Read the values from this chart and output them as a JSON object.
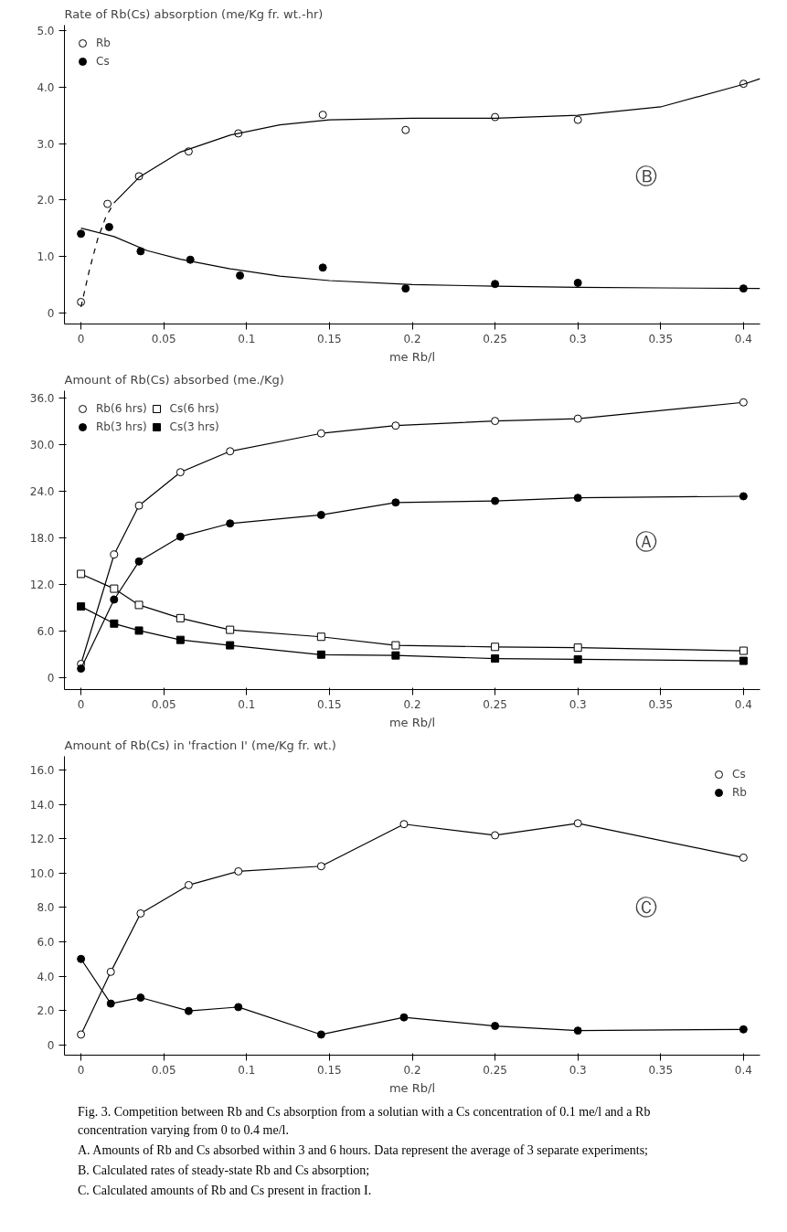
{
  "chart_data": [
    {
      "type": "scatter",
      "ylabel": "Rate of Rb(Cs) absorption (me/Kg fr. wt.-hr)",
      "xlabel": "me Rb/l",
      "annotations": [
        "Ⓑ"
      ],
      "xlim": [
        -0.01,
        0.41
      ],
      "xticks": [
        0,
        0.05,
        0.1,
        0.15,
        0.2,
        0.25,
        0.3,
        0.35,
        0.4
      ],
      "ylim": [
        -0.2,
        5.1
      ],
      "yticks": [
        0,
        {
          "value": 1,
          "label": "1.0"
        },
        {
          "value": 2,
          "label": "2.0"
        },
        {
          "value": 3,
          "label": "3.0"
        },
        {
          "value": 4,
          "label": "4.0"
        },
        {
          "value": 5,
          "label": "5.0"
        }
      ],
      "legend": "top left",
      "series": [
        {
          "name": "Rb",
          "color": "#ffffff",
          "marker": "circle",
          "x": [
            0,
            0.016,
            0.035,
            0.065,
            0.095,
            0.146,
            0.196,
            0.25,
            0.3,
            0.4
          ],
          "values": [
            0.19,
            1.93,
            2.42,
            2.86,
            3.18,
            3.51,
            3.24,
            3.47,
            3.42,
            4.06
          ]
        },
        {
          "name": "Cs",
          "color": "#000000",
          "marker": "circle",
          "x": [
            0,
            0.017,
            0.036,
            0.066,
            0.096,
            0.146,
            0.196,
            0.25,
            0.3,
            0.4
          ],
          "values": [
            1.4,
            1.52,
            1.09,
            0.94,
            0.66,
            0.8,
            0.43,
            0.51,
            0.53,
            0.43
          ]
        },
        {
          "type": "line",
          "color": "#000000",
          "marker": "none",
          "line_style": "dashed",
          "x": [
            0,
            0.005,
            0.01,
            0.015,
            0.02
          ],
          "values": [
            0.1,
            0.75,
            1.3,
            1.7,
            1.95
          ]
        },
        {
          "type": "line",
          "color": "#000000",
          "marker": "none",
          "line_style": "solid",
          "x": [
            0.02,
            0.035,
            0.06,
            0.09,
            0.12,
            0.15,
            0.2,
            0.25,
            0.3,
            0.35,
            0.4,
            0.41
          ],
          "values": [
            1.95,
            2.4,
            2.85,
            3.15,
            3.33,
            3.42,
            3.45,
            3.45,
            3.5,
            3.65,
            4.05,
            4.15
          ]
        },
        {
          "type": "line",
          "color": "#000000",
          "marker": "none",
          "line_style": "solid",
          "x": [
            0,
            0.02,
            0.04,
            0.06,
            0.09,
            0.12,
            0.15,
            0.2,
            0.25,
            0.3,
            0.35,
            0.41
          ],
          "values": [
            1.5,
            1.35,
            1.1,
            0.95,
            0.78,
            0.65,
            0.57,
            0.5,
            0.47,
            0.45,
            0.44,
            0.43
          ]
        }
      ]
    },
    {
      "type": "line",
      "ylabel": "Amount of Rb(Cs) absorbed (me./Kg)",
      "xlabel": "me Rb/l",
      "annotations": [
        "Ⓐ"
      ],
      "x": [
        0,
        0.02,
        0.035,
        0.06,
        0.09,
        0.145,
        0.19,
        0.25,
        0.3,
        0.4
      ],
      "xlim": [
        -0.01,
        0.41
      ],
      "xticks": [
        0,
        0.05,
        0.1,
        0.15,
        0.2,
        0.25,
        0.3,
        0.35,
        0.4
      ],
      "ylim": [
        -1.5,
        37
      ],
      "yticks": [
        0,
        {
          "value": 6,
          "label": "6.0"
        },
        {
          "value": 12,
          "label": "12.0"
        },
        {
          "value": 18,
          "label": "18.0"
        },
        {
          "value": 24,
          "label": "24.0"
        },
        {
          "value": 30,
          "label": "30.0"
        },
        {
          "value": 36,
          "label": "36.0"
        }
      ],
      "legend": "top left",
      "series": [
        {
          "name": "Rb(6 hrs)",
          "color": "#ffffff",
          "marker": "circle",
          "values": [
            1.8,
            15.9,
            22.2,
            26.5,
            29.2,
            31.5,
            32.5,
            33.1,
            33.4,
            35.5
          ]
        },
        {
          "name": "Rb(3 hrs)",
          "color": "#000000",
          "marker": "circle",
          "values": [
            1.2,
            10.1,
            15.0,
            18.2,
            19.9,
            21.0,
            22.6,
            22.8,
            23.2,
            23.4
          ]
        },
        {
          "name": "Cs(6 hrs)",
          "color": "#ffffff",
          "marker": "square",
          "values": [
            13.4,
            11.5,
            9.4,
            7.7,
            6.2,
            5.3,
            4.2,
            4.0,
            3.9,
            3.5
          ]
        },
        {
          "name": "Cs(3 hrs)",
          "color": "#000000",
          "marker": "square",
          "values": [
            9.2,
            7.0,
            6.1,
            4.9,
            4.2,
            3.0,
            2.9,
            2.5,
            2.4,
            2.2
          ]
        }
      ]
    },
    {
      "type": "line",
      "ylabel": "Amount of Rb(Cs) in 'fraction I' (me/Kg fr. wt.)",
      "xlabel": "me Rb/l",
      "annotations": [
        "Ⓒ",
        "Fig. 3. Competition between Rb and Cs absorption from a solutian with a Cs concentration of 0.1 me/l and a Rb concentration varying from 0 to 0.4 me/l.",
        "A. Amounts of Rb and Cs absorbed within 3 and 6 hours. Data represent the average of 3 separate experiments;",
        "B. Calculated rates of steady-state Rb and Cs absorption;",
        "C. Calculated amounts of Rb and Cs present in fraction I."
      ],
      "x": [
        0,
        0.018,
        0.036,
        0.065,
        0.095,
        0.145,
        0.195,
        0.25,
        0.3,
        0.4
      ],
      "xlim": [
        -0.01,
        0.41
      ],
      "xticks": [
        0,
        0.05,
        0.1,
        0.15,
        0.2,
        0.25,
        0.3,
        0.35,
        0.4
      ],
      "ylim": [
        -0.6,
        16.8
      ],
      "yticks": [
        0,
        {
          "value": 2,
          "label": "2.0"
        },
        {
          "value": 4,
          "label": "4.0"
        },
        {
          "value": 6,
          "label": "6.0"
        },
        {
          "value": 8,
          "label": "8.0"
        },
        {
          "value": 10,
          "label": "10.0"
        },
        {
          "value": 12,
          "label": "12.0"
        },
        {
          "value": 14,
          "label": "14.0"
        },
        {
          "value": 16,
          "label": "16.0"
        }
      ],
      "legend": "top right",
      "series": [
        {
          "name": "Cs",
          "color": "#ffffff",
          "marker": "circle",
          "values": [
            0.6,
            4.25,
            7.65,
            9.3,
            10.1,
            10.4,
            12.85,
            12.2,
            12.9,
            10.9
          ]
        },
        {
          "name": "Rb",
          "color": "#000000",
          "marker": "circle",
          "values": [
            5.0,
            2.4,
            2.75,
            1.97,
            2.2,
            0.6,
            1.6,
            1.1,
            0.83,
            0.9
          ]
        }
      ]
    }
  ]
}
